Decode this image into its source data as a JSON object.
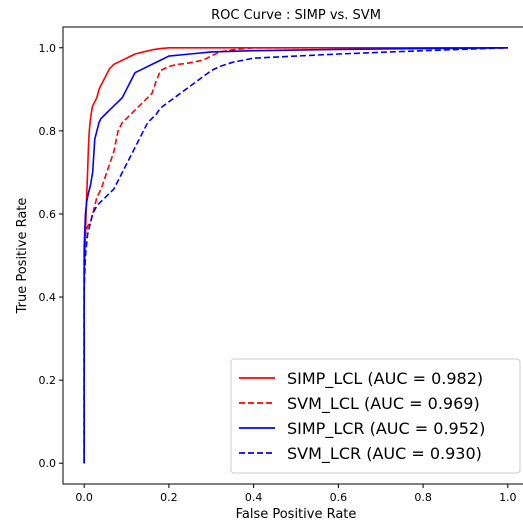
{
  "chart_data": {
    "type": "line",
    "title": "ROC Curve : SIMP vs. SVM",
    "xlabel": "False Positive Rate",
    "ylabel": "True Positive Rate",
    "xlim": [
      -0.05,
      1.05
    ],
    "ylim": [
      -0.05,
      1.05
    ],
    "xticks": [
      "0.0",
      "0.2",
      "0.4",
      "0.6",
      "0.8",
      "1.0"
    ],
    "yticks": [
      "0.0",
      "0.2",
      "0.4",
      "0.6",
      "0.8",
      "1.0"
    ],
    "grid": false,
    "legend_position": "bottom-right",
    "series": [
      {
        "name": "SIMP_LCL (AUC = 0.982)",
        "color": "#ff0000",
        "dash": "solid",
        "x": [
          0,
          0,
          0.003,
          0.005,
          0.008,
          0.01,
          0.012,
          0.015,
          0.018,
          0.02,
          0.025,
          0.03,
          0.035,
          0.04,
          0.045,
          0.05,
          0.055,
          0.06,
          0.07,
          0.08,
          0.09,
          0.1,
          0.12,
          0.14,
          0.16,
          0.18,
          0.2,
          0.25,
          0.3,
          0.4,
          0.6,
          1.0
        ],
        "y": [
          0,
          0.45,
          0.55,
          0.62,
          0.7,
          0.76,
          0.8,
          0.83,
          0.85,
          0.86,
          0.87,
          0.88,
          0.9,
          0.91,
          0.92,
          0.93,
          0.94,
          0.95,
          0.96,
          0.965,
          0.97,
          0.975,
          0.985,
          0.99,
          0.995,
          0.998,
          1.0,
          1.0,
          1.0,
          1.0,
          1.0,
          1.0
        ]
      },
      {
        "name": "SVM_LCL (AUC = 0.969)",
        "color": "#ff0000",
        "dash": "dashed",
        "x": [
          0,
          0,
          0.003,
          0.008,
          0.015,
          0.02,
          0.03,
          0.04,
          0.05,
          0.06,
          0.07,
          0.08,
          0.09,
          0.1,
          0.11,
          0.12,
          0.13,
          0.14,
          0.15,
          0.16,
          0.17,
          0.18,
          0.2,
          0.22,
          0.24,
          0.26,
          0.28,
          0.3,
          0.32,
          0.35,
          0.4,
          0.5,
          0.7,
          1.0
        ],
        "y": [
          0,
          0.5,
          0.55,
          0.57,
          0.58,
          0.6,
          0.64,
          0.66,
          0.69,
          0.72,
          0.75,
          0.8,
          0.82,
          0.83,
          0.84,
          0.85,
          0.86,
          0.87,
          0.88,
          0.89,
          0.92,
          0.945,
          0.955,
          0.96,
          0.962,
          0.966,
          0.97,
          0.98,
          0.99,
          0.995,
          1.0,
          1.0,
          1.0,
          1.0
        ]
      },
      {
        "name": "SIMP_LCR (AUC = 0.952)",
        "color": "#0000ff",
        "dash": "solid",
        "x": [
          0,
          0,
          0.003,
          0.006,
          0.01,
          0.015,
          0.02,
          0.025,
          0.03,
          0.035,
          0.04,
          0.05,
          0.06,
          0.07,
          0.08,
          0.09,
          0.1,
          0.11,
          0.12,
          0.14,
          0.16,
          0.18,
          0.2,
          0.25,
          0.3,
          0.4,
          0.6,
          0.8,
          1.0
        ],
        "y": [
          0,
          0.52,
          0.6,
          0.63,
          0.65,
          0.67,
          0.7,
          0.78,
          0.8,
          0.82,
          0.83,
          0.84,
          0.85,
          0.86,
          0.87,
          0.88,
          0.9,
          0.92,
          0.94,
          0.95,
          0.96,
          0.97,
          0.98,
          0.985,
          0.99,
          0.993,
          0.996,
          0.998,
          1.0
        ]
      },
      {
        "name": "SVM_LCR (AUC = 0.930)",
        "color": "#0000ff",
        "dash": "dashed",
        "x": [
          0,
          0,
          0.003,
          0.008,
          0.015,
          0.02,
          0.03,
          0.04,
          0.05,
          0.06,
          0.07,
          0.08,
          0.09,
          0.1,
          0.11,
          0.12,
          0.13,
          0.14,
          0.15,
          0.16,
          0.17,
          0.18,
          0.2,
          0.22,
          0.24,
          0.26,
          0.28,
          0.3,
          0.32,
          0.35,
          0.4,
          0.5,
          0.6,
          0.8,
          1.0
        ],
        "y": [
          0,
          0.42,
          0.5,
          0.55,
          0.58,
          0.6,
          0.62,
          0.63,
          0.64,
          0.65,
          0.66,
          0.68,
          0.7,
          0.72,
          0.74,
          0.76,
          0.78,
          0.8,
          0.82,
          0.83,
          0.84,
          0.855,
          0.87,
          0.885,
          0.9,
          0.915,
          0.93,
          0.945,
          0.955,
          0.965,
          0.975,
          0.98,
          0.985,
          0.993,
          1.0
        ]
      }
    ]
  }
}
